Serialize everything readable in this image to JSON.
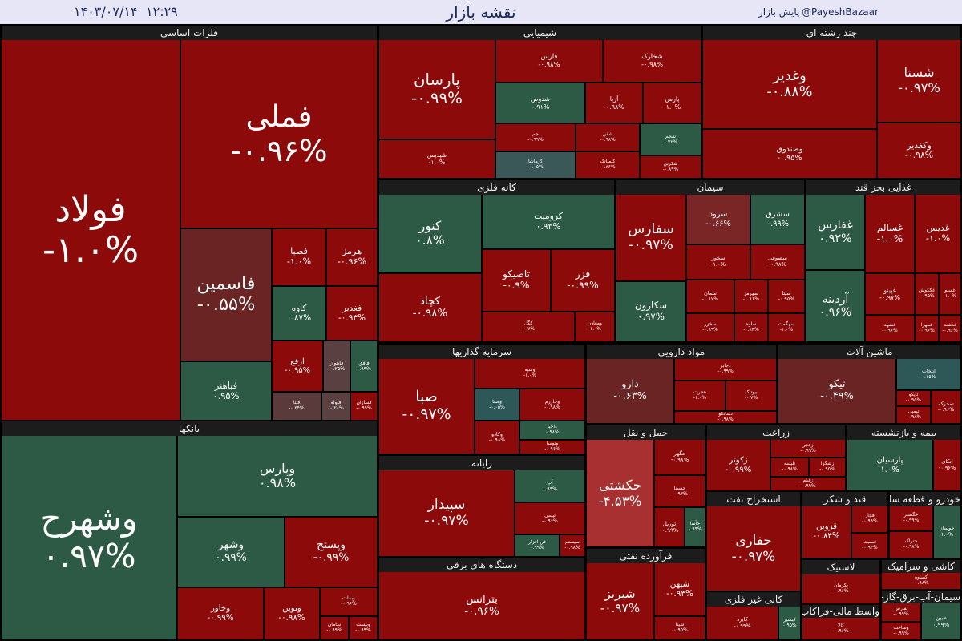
{
  "header": {
    "date": "۱۴۰۳/۰۷/۱۴",
    "time": "۱۲:۲۹",
    "title": "نقشه بازار",
    "handle": "@PayeshBazaar",
    "site": "پایش بازار"
  },
  "sectors": [
    {
      "name": "فلزات اساسی",
      "tiles": [
        {
          "name": "فولاد",
          "change": "-۱.۰%",
          "color": "#8c0a0a"
        },
        {
          "name": "فملی",
          "change": "-۰.۹۶%",
          "color": "#8c0a0a"
        },
        {
          "name": "فاسمین",
          "change": "-۰.۵۵%",
          "color": "#6a2424"
        },
        {
          "name": "فباهنر",
          "change": "۰.۹۵%",
          "color": "#2d5a45"
        },
        {
          "name": "فصبا",
          "change": "-۱.۰%",
          "color": "#8c0a0a"
        },
        {
          "name": "هرمز",
          "change": "-۰.۹۶%",
          "color": "#8c0a0a"
        },
        {
          "name": "کاوه",
          "change": "۰.۸۷%",
          "color": "#2d5a45"
        },
        {
          "name": "فغدیر",
          "change": "-۰.۹۳%",
          "color": "#8c0a0a"
        },
        {
          "name": "ارفع",
          "change": "-۰.۹۵%",
          "color": "#8c0a0a"
        },
        {
          "name": "فاهواز",
          "change": "-۰.۲۵%",
          "color": "#5a4040"
        },
        {
          "name": "فافق",
          "change": "۰.۹۹%",
          "color": "#2d5a45"
        },
        {
          "name": "فیتا",
          "change": "-۰.۳۴%",
          "color": "#5a3a3a"
        },
        {
          "name": "فلوله",
          "change": "-۰.۲۸%",
          "color": "#5a4040"
        },
        {
          "name": "فسازان",
          "change": "-۰.۹۹%",
          "color": "#8c0a0a"
        }
      ]
    },
    {
      "name": "بانکها",
      "tiles": [
        {
          "name": "وشهرح",
          "change": "۰.۹۷%",
          "color": "#2d5a45"
        },
        {
          "name": "وپارس",
          "change": "۰.۹۸%",
          "color": "#2d5a45"
        },
        {
          "name": "وشهر",
          "change": "۰.۹۹%",
          "color": "#2d5a45"
        },
        {
          "name": "وپستح",
          "change": "-۰.۹۹%",
          "color": "#8c0a0a"
        },
        {
          "name": "وخاور",
          "change": "-۰.۹۹%",
          "color": "#8c0a0a"
        },
        {
          "name": "ونوین",
          "change": "-۰.۹۸%",
          "color": "#8c0a0a"
        },
        {
          "name": "وبملت",
          "change": "-۰.۹۶%",
          "color": "#8c0a0a"
        },
        {
          "name": "سامان",
          "change": "-۰.۹۹%",
          "color": "#8c0a0a"
        },
        {
          "name": "وبیست",
          "change": "-۰.۹۹%",
          "color": "#8c0a0a"
        }
      ]
    },
    {
      "name": "شیمیایی",
      "tiles": [
        {
          "name": "پارسان",
          "change": "-۰.۹۹%",
          "color": "#8c0a0a"
        },
        {
          "name": "شپدیس",
          "change": "-۱.۰%",
          "color": "#8c0a0a"
        },
        {
          "name": "فارس",
          "change": "-۰.۹۸%",
          "color": "#8c0a0a"
        },
        {
          "name": "شخارک",
          "change": "-۰.۹۸%",
          "color": "#8c0a0a"
        },
        {
          "name": "شدوص",
          "change": "۰.۹۱%",
          "color": "#2d5a45"
        },
        {
          "name": "آریا",
          "change": "-۰.۹۸%",
          "color": "#8c0a0a"
        },
        {
          "name": "پارس",
          "change": "-۱.۰%",
          "color": "#8c0a0a"
        },
        {
          "name": "جم",
          "change": "-۰.۹۹%",
          "color": "#8c0a0a"
        },
        {
          "name": "شفن",
          "change": "-۰.۹۸%",
          "color": "#8c0a0a"
        },
        {
          "name": "شجم",
          "change": "۰.۷۲%",
          "color": "#2d5a45"
        },
        {
          "name": "کرماشا",
          "change": "-۰.۰۵%",
          "color": "#3a5858"
        },
        {
          "name": "کیمیاتک",
          "change": "-۰.۸۶%",
          "color": "#8c0a0a"
        },
        {
          "name": "شکربن",
          "change": "-۰.۸۹%",
          "color": "#8c0a0a"
        }
      ]
    },
    {
      "name": "چند رشته ای",
      "tiles": [
        {
          "name": "وغدیر",
          "change": "-۰.۸۸%",
          "color": "#8c0a0a"
        },
        {
          "name": "وصندوق",
          "change": "-۰.۹۵%",
          "color": "#8c0a0a"
        },
        {
          "name": "شستا",
          "change": "-۰.۹۷%",
          "color": "#8c0a0a"
        },
        {
          "name": "وکغدیر",
          "change": "-۰.۹۸%",
          "color": "#8c0a0a"
        }
      ]
    },
    {
      "name": "کانه فلزی",
      "tiles": [
        {
          "name": "کنور",
          "change": "۰.۸%",
          "color": "#2d5a45"
        },
        {
          "name": "کرومیت",
          "change": "۰.۹۳%",
          "color": "#2d5a45"
        },
        {
          "name": "کچاد",
          "change": "-۰.۹۸%",
          "color": "#8c0a0a"
        },
        {
          "name": "تاصیکو",
          "change": "-۰.۹%",
          "color": "#8c0a0a"
        },
        {
          "name": "فزر",
          "change": "-۰.۹۹%",
          "color": "#8c0a0a"
        },
        {
          "name": "کگل",
          "change": "-۰.۷%",
          "color": "#8c0a0a"
        },
        {
          "name": "ومعادن",
          "change": "-۱.۰%",
          "color": "#8c0a0a"
        }
      ]
    },
    {
      "name": "سیمان",
      "tiles": [
        {
          "name": "سفارس",
          "change": "-۰.۹۷%",
          "color": "#8c0a0a"
        },
        {
          "name": "سرود",
          "change": "-۰.۶۶%",
          "color": "#7a2626"
        },
        {
          "name": "سشرق",
          "change": "۰.۹۹%",
          "color": "#2d5a45"
        },
        {
          "name": "سخوز",
          "change": "-۱.۰%",
          "color": "#8c0a0a"
        },
        {
          "name": "سصوفی",
          "change": "-۰.۹۸%",
          "color": "#8c0a0a"
        },
        {
          "name": "سکارون",
          "change": "۰.۹۷%",
          "color": "#2d5a45"
        },
        {
          "name": "سمان",
          "change": "-۰.۸۷%",
          "color": "#8c0a0a"
        },
        {
          "name": "سهرمز",
          "change": "-۰.۸۱%",
          "color": "#8c0a0a"
        },
        {
          "name": "سیتا",
          "change": "-۰.۹۵%",
          "color": "#8c0a0a"
        },
        {
          "name": "سخزر",
          "change": "-۰.۹۹%",
          "color": "#8c0a0a"
        },
        {
          "name": "ساوه",
          "change": "-۰.۸۴%",
          "color": "#8c0a0a"
        },
        {
          "name": "سهگمت",
          "change": "-۱.۰%",
          "color": "#8c0a0a"
        }
      ]
    },
    {
      "name": "غذایی بجز قند",
      "tiles": [
        {
          "name": "غفارس",
          "change": "۰.۹۲%",
          "color": "#2d5a45"
        },
        {
          "name": "آردینه",
          "change": "۰.۹۶%",
          "color": "#2d5a45"
        },
        {
          "name": "غسالم",
          "change": "-۱.۰%",
          "color": "#8c0a0a"
        },
        {
          "name": "غدیس",
          "change": "-۱.۰%",
          "color": "#8c0a0a"
        },
        {
          "name": "غپینو",
          "change": "-۰.۹۷%",
          "color": "#8c0a0a"
        },
        {
          "name": "غگکوش",
          "change": "-۰.۹۵%",
          "color": "#8c0a0a"
        },
        {
          "name": "غمینو",
          "change": "-۱.۰%",
          "color": "#8c0a0a"
        },
        {
          "name": "غشهد",
          "change": "-۰.۹۶%",
          "color": "#8c0a0a"
        },
        {
          "name": "غمهرا",
          "change": "-۰.۹۶%",
          "color": "#8c0a0a"
        },
        {
          "name": "غدشت",
          "change": "-۰.۹۶%",
          "color": "#8c0a0a"
        }
      ]
    },
    {
      "name": "سرمایه گذاریها",
      "tiles": [
        {
          "name": "صبا",
          "change": "-۰.۹۷%",
          "color": "#8c0a0a"
        },
        {
          "name": "وسپه",
          "change": "-۱.۰%",
          "color": "#8c0a0a"
        },
        {
          "name": "وصنا",
          "change": "-۰.۰۵%",
          "color": "#2e5858"
        },
        {
          "name": "وخارزم",
          "change": "-۰.۹۸%",
          "color": "#8c0a0a"
        },
        {
          "name": "وکادو",
          "change": "-۰.۹۸%",
          "color": "#8c0a0a"
        },
        {
          "name": "واحیا",
          "change": "۰.۹۸%",
          "color": "#2d5a45"
        },
        {
          "name": "وتوسا",
          "change": "-۰.۹۶%",
          "color": "#8c0a0a"
        }
      ]
    },
    {
      "name": "رایانه",
      "tiles": [
        {
          "name": "سپیدار",
          "change": "-۰.۹۷%",
          "color": "#8c0a0a"
        },
        {
          "name": "آپ",
          "change": "۰.۹۹%",
          "color": "#2d5a45"
        },
        {
          "name": "تیسی",
          "change": "-۰.۹۶%",
          "color": "#8c0a0a"
        },
        {
          "name": "فن افزار",
          "change": "۰.۹۹%",
          "color": "#2d5a45"
        },
        {
          "name": "سیستم",
          "change": "-۰.۹۸%",
          "color": "#8c0a0a"
        }
      ]
    },
    {
      "name": "دستگاه های برقی",
      "tiles": [
        {
          "name": "بترانس",
          "change": "-۰.۹۶%",
          "color": "#8c0a0a"
        }
      ]
    },
    {
      "name": "مواد دارویی",
      "tiles": [
        {
          "name": "دارو",
          "change": "-۰.۶۳%",
          "color": "#6a2424"
        },
        {
          "name": "دجابر",
          "change": "-۰.۹۹%",
          "color": "#8c0a0a"
        },
        {
          "name": "هجرت",
          "change": "-۱.۰%",
          "color": "#8c0a0a"
        },
        {
          "name": "بیوتیک",
          "change": "-۰.۷%",
          "color": "#8c0a0a"
        },
        {
          "name": "دسانکو",
          "change": "-۰.۹۸%",
          "color": "#8c0a0a"
        }
      ]
    },
    {
      "name": "ماشین آلات",
      "tiles": [
        {
          "name": "تیکو",
          "change": "-۰.۴۹%",
          "color": "#6a2424"
        },
        {
          "name": "انتخاب",
          "change": "۰.۱۵%",
          "color": "#2e5858"
        },
        {
          "name": "تاپکو",
          "change": "-۰.۹۵%",
          "color": "#8c0a0a"
        },
        {
          "name": "تپمپی",
          "change": "-۰.۹۸%",
          "color": "#8c0a0a"
        },
        {
          "name": "تمحرکه",
          "change": "-۰.۹۶%",
          "color": "#8c0a0a"
        }
      ]
    },
    {
      "name": "حمل و نقل",
      "tiles": [
        {
          "name": "حکشتی",
          "change": "-۴.۵۳%",
          "color": "#a83030"
        },
        {
          "name": "حگهر",
          "change": "-۰.۹۸%",
          "color": "#8c0a0a"
        },
        {
          "name": "حسینا",
          "change": "-۰.۹۳%",
          "color": "#8c0a0a"
        },
        {
          "name": "توریل",
          "change": "-۰.۹۹%",
          "color": "#8c0a0a"
        },
        {
          "name": "حآسا",
          "change": "۰.۹۹%",
          "color": "#2d5a45"
        }
      ]
    },
    {
      "name": "فرآورده نفتی",
      "tiles": [
        {
          "name": "شبریز",
          "change": "-۰.۹۷%",
          "color": "#8c0a0a"
        },
        {
          "name": "شپهن",
          "change": "-۰.۹۳%",
          "color": "#8c0a0a"
        },
        {
          "name": "شپنا",
          "change": "-۰.۹۵%",
          "color": "#8c0a0a"
        }
      ]
    },
    {
      "name": "زراعت",
      "tiles": [
        {
          "name": "زکوثر",
          "change": "-۰.۹۹%",
          "color": "#8c0a0a"
        },
        {
          "name": "زفجر",
          "change": "-۰.۹۹%",
          "color": "#8c0a0a"
        },
        {
          "name": "تلیسه",
          "change": "-۰.۹۸%",
          "color": "#8c0a0a"
        },
        {
          "name": "زشگزا",
          "change": "-۰.۹۵%",
          "color": "#8c0a0a"
        },
        {
          "name": "زقیام",
          "change": "-۰.۹۹%",
          "color": "#8c0a0a"
        }
      ]
    },
    {
      "name": "بیمه و بازنشسته",
      "tiles": [
        {
          "name": "پارسیان",
          "change": "۱.۰%",
          "color": "#2d5a45"
        },
        {
          "name": "اتکای",
          "change": "-۰.۹۶%",
          "color": "#8c0a0a"
        }
      ]
    },
    {
      "name": "استخراج نفت",
      "tiles": [
        {
          "name": "حفاری",
          "change": "-۰.۹۷%",
          "color": "#8c0a0a"
        }
      ]
    },
    {
      "name": "قند و شکر",
      "tiles": [
        {
          "name": "قزوین",
          "change": "-۰.۸۴%",
          "color": "#8c0a0a"
        },
        {
          "name": "قچار",
          "change": "-۰.۹۹%",
          "color": "#8c0a0a"
        },
        {
          "name": "قسبت",
          "change": "-۰.۹۳%",
          "color": "#8c0a0a"
        }
      ]
    },
    {
      "name": "خودرو و قطعه ساز",
      "tiles": [
        {
          "name": "خگستر",
          "change": "-۰.۹۹%",
          "color": "#8c0a0a"
        },
        {
          "name": "ختراک",
          "change": "-۰.۹۸%",
          "color": "#8c0a0a"
        },
        {
          "name": "خوساز",
          "change": "۱.۰%",
          "color": "#2d5a45"
        }
      ]
    },
    {
      "name": "کانی غیر فلزی",
      "tiles": [
        {
          "name": "کایزد",
          "change": "-۰.۹۹%",
          "color": "#8c0a0a"
        },
        {
          "name": "کیشیر",
          "change": "۰.۹۵%",
          "color": "#2d5a45"
        }
      ]
    },
    {
      "name": "لاستیک",
      "tiles": [
        {
          "name": "پکرمان",
          "change": "-۰.۹۶%",
          "color": "#8c0a0a"
        }
      ]
    },
    {
      "name": "واسط مالی-فراکاب",
      "tiles": [
        {
          "name": "کالا",
          "change": "-۰.۹۶%",
          "color": "#8c0a0a"
        }
      ]
    },
    {
      "name": "کاشی و سرامیک",
      "tiles": [
        {
          "name": "کساوه",
          "change": "-۰.۹۸%",
          "color": "#8c0a0a"
        }
      ]
    },
    {
      "name": "سیمان-آب-برق-گاز-انبوه سازی",
      "tiles": [
        {
          "name": "ثفارس",
          "change": "-۰.۹۹%",
          "color": "#8c0a0a"
        },
        {
          "name": "وساخت",
          "change": "-۰.۹۹%",
          "color": "#8c0a0a"
        },
        {
          "name": "مبین",
          "change": "۰.۹۹%",
          "color": "#2d5a45"
        }
      ]
    }
  ]
}
